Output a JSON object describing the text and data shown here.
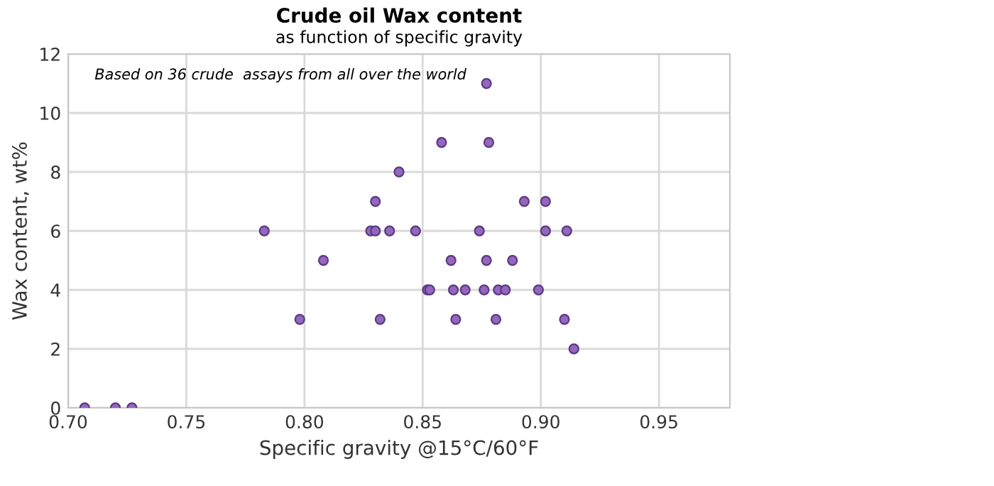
{
  "chart_data": {
    "type": "scatter",
    "title": "Crude oil Wax content",
    "subtitle": "as function of specific gravity",
    "xlabel": "Specific gravity @15°C/60°F",
    "ylabel": "Wax content, wt%",
    "annotations": [
      "Based on 36 crude  assays from all over the world"
    ],
    "x": [
      0.707,
      0.72,
      0.727,
      0.783,
      0.798,
      0.808,
      0.828,
      0.83,
      0.83,
      0.832,
      0.836,
      0.84,
      0.847,
      0.852,
      0.853,
      0.858,
      0.862,
      0.863,
      0.864,
      0.868,
      0.874,
      0.877,
      0.878,
      0.893,
      0.902,
      0.902,
      0.911,
      0.877,
      0.888,
      0.876,
      0.882,
      0.885,
      0.899,
      0.881,
      0.91,
      0.914
    ],
    "series": [
      {
        "color": "#9467bd",
        "values": [
          0,
          0,
          0,
          6,
          3,
          5,
          6,
          6,
          7,
          3,
          6,
          8,
          6,
          4,
          4,
          9,
          5,
          4,
          3,
          4,
          6,
          11,
          9,
          7,
          7,
          6,
          6,
          5,
          5,
          4,
          4,
          4,
          4,
          3,
          3,
          2
        ]
      }
    ],
    "xlim": [
      0.7,
      0.98
    ],
    "xticks": [
      {
        "value": 0.7,
        "label": "0.70"
      },
      {
        "value": 0.75,
        "label": "0.75"
      },
      {
        "value": 0.8,
        "label": "0.80"
      },
      {
        "value": 0.85,
        "label": "0.85"
      },
      {
        "value": 0.9,
        "label": "0.90"
      },
      {
        "value": 0.95,
        "label": "0.95"
      }
    ],
    "ylim": [
      0,
      12
    ],
    "yticks": [
      0,
      2,
      4,
      6,
      8,
      10,
      12
    ],
    "grid": true,
    "marker": "circle"
  }
}
